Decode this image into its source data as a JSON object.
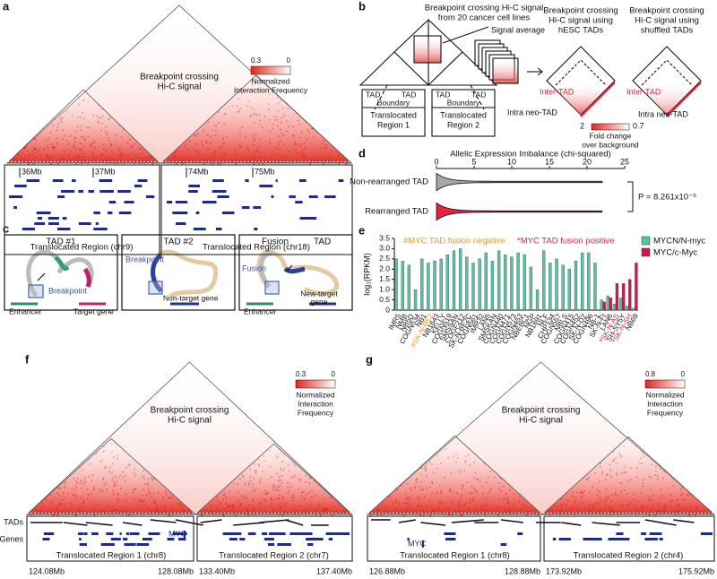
{
  "panels": {
    "a": {
      "letter": "a",
      "title": [
        "Breakpoint crossing",
        "Hi-C signal"
      ],
      "colorbar": {
        "high": "0.3",
        "low": "0",
        "label": [
          "Normalized",
          "Interaction Frequency"
        ]
      },
      "coordinates": [
        "36Mb",
        "37Mb",
        "74Mb",
        "75Mb"
      ],
      "regions": [
        "Translocated Region (chr9)",
        "Translocated Region (chr18)"
      ]
    },
    "b": {
      "letter": "b",
      "source": [
        "Breakpoint crossing Hi-C signal",
        "from 20 cancer cell lines"
      ],
      "average": "Signal average",
      "hesc": [
        "Breakpoint crossing",
        "Hi-C signal using",
        "hESC TADs"
      ],
      "shuffled": [
        "Breakpoint crossing",
        "Hi-C signal using",
        "shuffled TADs"
      ],
      "left": {
        "tads": [
          "TAD",
          "TAD"
        ],
        "boundary": "Boundary",
        "region": [
          "Translocated",
          "Region 1"
        ]
      },
      "right": {
        "tads": [
          "TAD",
          "TAD"
        ],
        "boundary": "Boundary",
        "region": [
          "Translocated",
          "Region 2"
        ]
      },
      "inter_tad": [
        "Inter-TAD",
        "Inter-TAD"
      ],
      "intra_tad": [
        "Intra neo-TAD",
        "Intra neo-TAD"
      ],
      "colorbar": {
        "high": "2",
        "low": "0.7",
        "label": [
          "Fold change",
          "over background"
        ]
      }
    },
    "c": {
      "letter": "c",
      "box1": {
        "title": "TAD #1",
        "breakpoint": "Breakpoint",
        "enhancer": "Enhancer",
        "target": "Target gene"
      },
      "box2": {
        "title": "TAD #2",
        "breakpoint": "Breakpoint",
        "gene": "Non-target gene"
      },
      "box3": {
        "title": [
          "Fusion",
          "TAD"
        ],
        "fusion": "Fusion",
        "enhancer": "Enhancer",
        "gene": [
          "New-target",
          "gene"
        ]
      }
    },
    "d": {
      "letter": "d"
    },
    "e": {
      "letter": "e"
    },
    "f": {
      "letter": "f",
      "title": [
        "Breakpoint crossing",
        "Hi-C signal"
      ],
      "colorbar": {
        "high": "0.3",
        "low": "0",
        "label": [
          "Normalized",
          "Interaction",
          "Frequency"
        ]
      },
      "tracks": [
        "TADs",
        "Genes"
      ],
      "gene": "MYC",
      "regions": [
        "Translocated Region 1 (chr8)",
        "Translocated Region 2 (chr7)"
      ],
      "coordinates": [
        "124.08Mb",
        "128.08Mb",
        "133.40Mb",
        "137.40Mb"
      ]
    },
    "g": {
      "letter": "g",
      "title": [
        "Breakpoint crossing",
        "Hi-C signal"
      ],
      "colorbar": {
        "high": "0.8",
        "low": "0",
        "label": [
          "Normalized",
          "Interaction",
          "Frequency"
        ]
      },
      "gene": "MYC",
      "regions": [
        "Translocated Region 1 (chr8)",
        "Translocated Region 2 (chr4)"
      ],
      "coordinates": [
        "126.88Mb",
        "128.88Mb",
        "173.92Mb",
        "175.92Mb"
      ]
    }
  },
  "chart_data": [
    {
      "type": "violin",
      "title": "Allelic Expression Imbalance (chi-squared)",
      "categories": [
        "Non-rearranged TAD",
        "Rearranged TAD"
      ],
      "colors": [
        "#a6a6a6",
        "#e3243b"
      ],
      "values": [
        22,
        22
      ],
      "xlim": [
        0,
        25
      ],
      "xticks": [
        0,
        5,
        10,
        15,
        20,
        25
      ],
      "annotation": "P = 8.261x10⁻⁶"
    },
    {
      "type": "bar",
      "ylabel": "log₂(RPKM)",
      "categories": [
        "IMR5",
        "NMB",
        "NB5D",
        "COGN534",
        "NB1",
        "#SK-N-BE2",
        "NB1643",
        "KELLY",
        "COGN519",
        "SMSSAN",
        "COGF212",
        "SK-N-BE2C",
        "COGN561",
        "IMR32",
        "LAN5",
        "SMSKAN",
        "COGN440",
        "COGN471",
        "COGN573",
        "COGN453",
        "NBEBC1",
        "NGP",
        "NB1691",
        "NLF",
        "CHP134",
        "COGN557",
        "NBLS",
        "COGN415",
        "COGN452",
        "SK-N-DZ",
        "COGN496",
        "NB-1",
        "SK-N-FI",
        "LAN6",
        "*SK-N-AS",
        "SH-SY5Y",
        "*SK-N-SH",
        "NB69"
      ],
      "series": [
        {
          "name": "MYCN/N-myc",
          "color": "#5dbfa6",
          "values": [
            2.5,
            2.4,
            2.2,
            1.0,
            2.5,
            2.3,
            2.4,
            2.5,
            2.7,
            2.9,
            3.0,
            2.6,
            2.3,
            2.5,
            2.8,
            2.4,
            2.9,
            2.7,
            2.6,
            2.8,
            2.7,
            2.1,
            1.0,
            2.9,
            2.3,
            2.5,
            2.2,
            2.0,
            2.4,
            2.8,
            2.8,
            2.3,
            0.5,
            0.7,
            0.3,
            0.6,
            0.2,
            0.1
          ]
        },
        {
          "name": "MYC/c-Myc",
          "color": "#d1184f",
          "values": [
            null,
            null,
            null,
            null,
            null,
            null,
            null,
            null,
            null,
            null,
            null,
            null,
            null,
            null,
            null,
            null,
            null,
            null,
            null,
            null,
            null,
            null,
            null,
            null,
            null,
            null,
            null,
            null,
            null,
            null,
            null,
            null,
            0.4,
            0.6,
            1.3,
            1.3,
            1.5,
            2.3
          ]
        }
      ],
      "annotations": [
        {
          "text": "#MYC TAD fusion negative",
          "color": "#f0961e"
        },
        {
          "text": "*MYC TAD fusion positive",
          "color": "#e3243b"
        }
      ],
      "ylim": [
        0,
        3.5
      ],
      "yticks": [
        0,
        0.5,
        {
          "value": 1.0,
          "label": "1.0"
        },
        1.5,
        {
          "value": 2.0,
          "label": "2.0"
        },
        2.5,
        {
          "value": 3.0,
          "label": "3.0"
        },
        3.5
      ]
    }
  ]
}
